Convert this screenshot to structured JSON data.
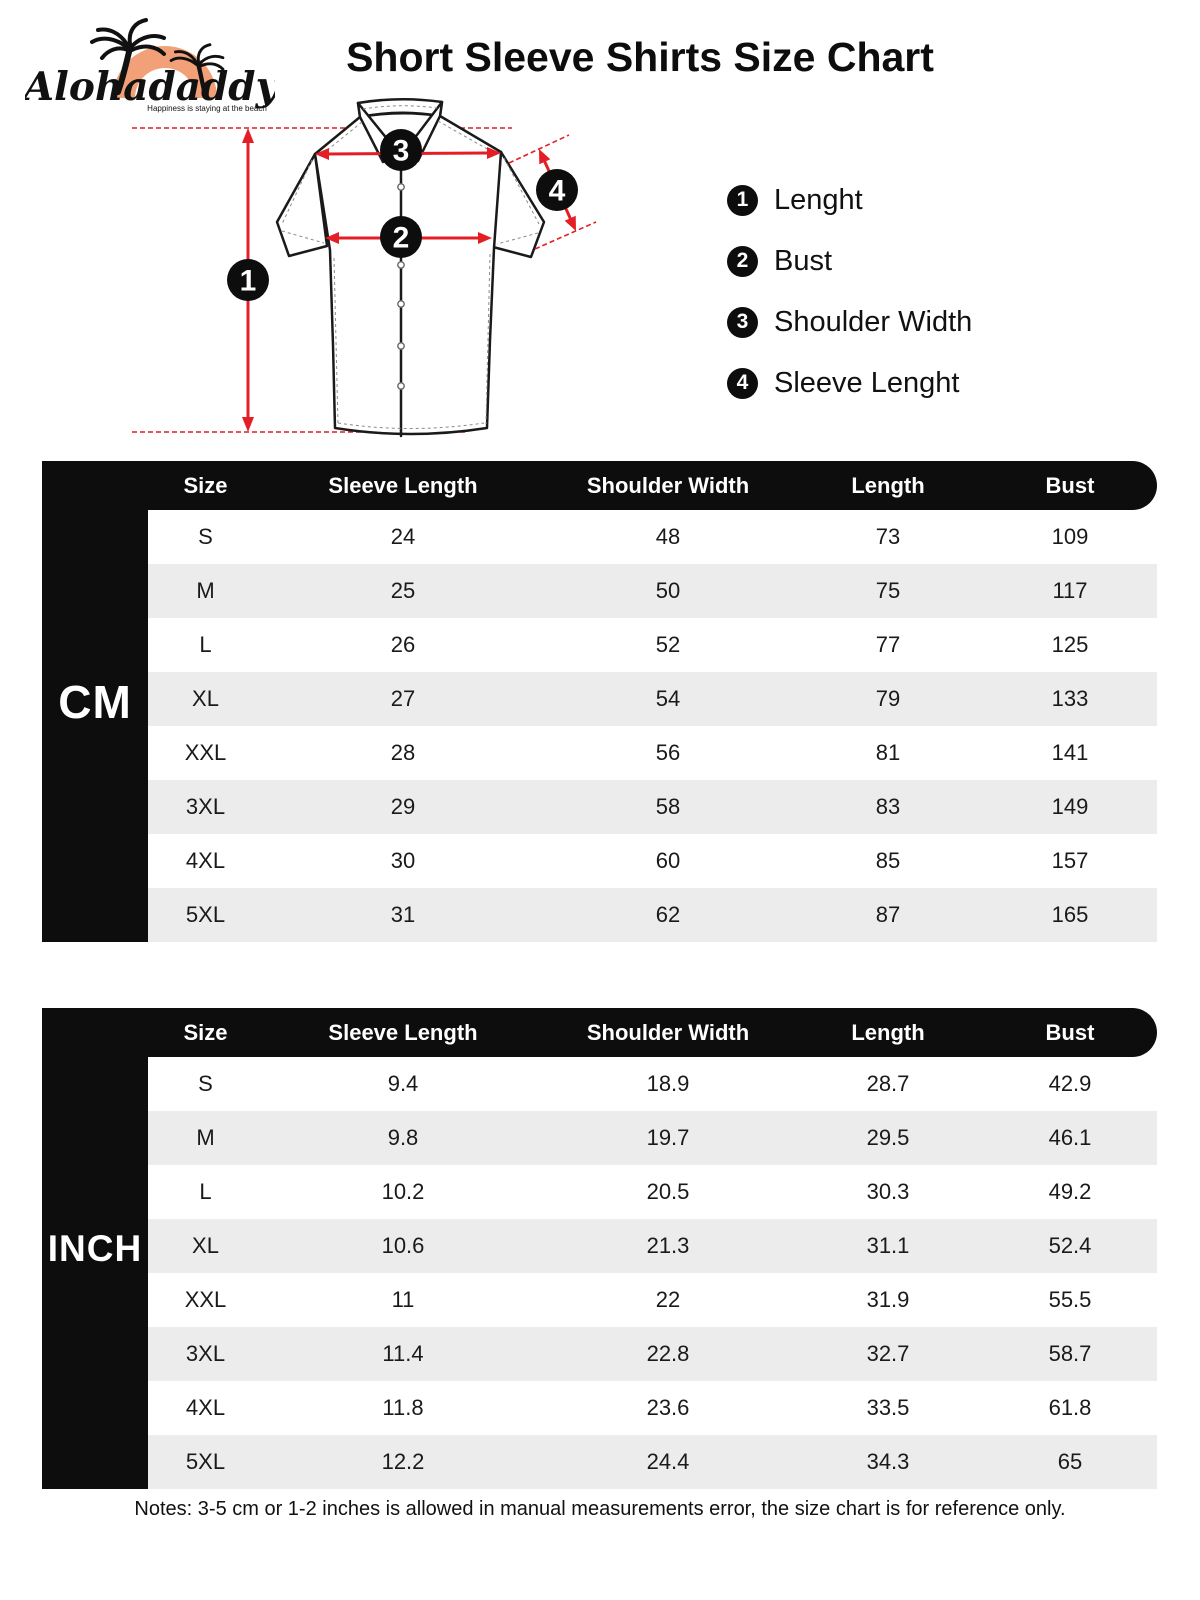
{
  "brand": {
    "name": "Alohadaddy",
    "tagline": "Happiness is staying at the beach"
  },
  "title": "Short Sleeve Shirts Size Chart",
  "diagram": {
    "markers": [
      "1",
      "2",
      "3",
      "4"
    ]
  },
  "legend": [
    {
      "num": "1",
      "label": "Lenght"
    },
    {
      "num": "2",
      "label": "Bust"
    },
    {
      "num": "3",
      "label": "Shoulder Width"
    },
    {
      "num": "4",
      "label": "Sleeve Lenght"
    }
  ],
  "tables": [
    {
      "unit": "CM",
      "columns": [
        "Size",
        "Sleeve Length",
        "Shoulder Width",
        "Length",
        "Bust"
      ],
      "rows": [
        [
          "S",
          "24",
          "48",
          "73",
          "109"
        ],
        [
          "M",
          "25",
          "50",
          "75",
          "117"
        ],
        [
          "L",
          "26",
          "52",
          "77",
          "125"
        ],
        [
          "XL",
          "27",
          "54",
          "79",
          "133"
        ],
        [
          "XXL",
          "28",
          "56",
          "81",
          "141"
        ],
        [
          "3XL",
          "29",
          "58",
          "83",
          "149"
        ],
        [
          "4XL",
          "30",
          "60",
          "85",
          "157"
        ],
        [
          "5XL",
          "31",
          "62",
          "87",
          "165"
        ]
      ]
    },
    {
      "unit": "INCH",
      "columns": [
        "Size",
        "Sleeve Length",
        "Shoulder Width",
        "Length",
        "Bust"
      ],
      "rows": [
        [
          "S",
          "9.4",
          "18.9",
          "28.7",
          "42.9"
        ],
        [
          "M",
          "9.8",
          "19.7",
          "29.5",
          "46.1"
        ],
        [
          "L",
          "10.2",
          "20.5",
          "30.3",
          "49.2"
        ],
        [
          "XL",
          "10.6",
          "21.3",
          "31.1",
          "52.4"
        ],
        [
          "XXL",
          "11",
          "22",
          "31.9",
          "55.5"
        ],
        [
          "3XL",
          "11.4",
          "22.8",
          "32.7",
          "58.7"
        ],
        [
          "4XL",
          "11.8",
          "23.6",
          "33.5",
          "61.8"
        ],
        [
          "5XL",
          "12.2",
          "24.4",
          "34.3",
          "65"
        ]
      ]
    }
  ],
  "note": "Notes: 3-5 cm or 1-2 inches is allowed in manual measurements error, the size chart is for reference only.",
  "colors": {
    "accent_red": "#e31e24",
    "black": "#0d0d0d",
    "row_alt": "#ececec",
    "sun_orange": "#f2a077"
  }
}
